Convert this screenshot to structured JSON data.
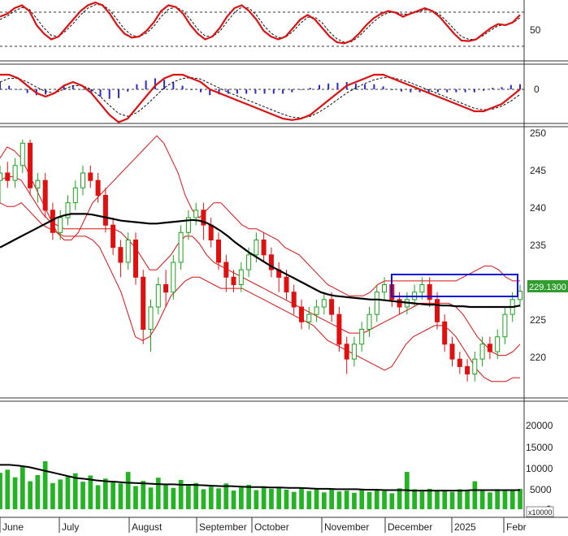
{
  "chart_data": {
    "type": "candlestick",
    "x_tick_labels": [
      "June",
      "July",
      "August",
      "September",
      "October",
      "November",
      "December",
      "2025",
      "Febr"
    ],
    "price_panel": {
      "ylim": [
        215,
        251
      ],
      "y_ticks": [
        220,
        225,
        230,
        235,
        240,
        245,
        250
      ],
      "last_price_label": "229.1300",
      "bollinger_upper": [
        247,
        248.5,
        248,
        247,
        245,
        243,
        241,
        239,
        237,
        236,
        236,
        237,
        239,
        241,
        242,
        243,
        244,
        245,
        246,
        247,
        248,
        249,
        250,
        249,
        247,
        245,
        242,
        240,
        239,
        240,
        241,
        241,
        240,
        239,
        238,
        237.5,
        237.5,
        237,
        236.5,
        236,
        235,
        234.5,
        234,
        233,
        232,
        231,
        230,
        229.5,
        229,
        228.5,
        228.5,
        228.5,
        229,
        230,
        230.5,
        230.5,
        230.5,
        230.5,
        230.5,
        230.5,
        230.5,
        230.5,
        230.5,
        230.5,
        230.5,
        231,
        231.5,
        232,
        232.5,
        232.5,
        232,
        231,
        230.5,
        230.5
      ],
      "bollinger_mid": [
        244,
        244.5,
        244.5,
        244,
        242.5,
        241,
        239.5,
        238.5,
        238,
        237.5,
        237.5,
        237.5,
        237.5,
        237.5,
        237.5,
        237.5,
        237.5,
        237,
        236,
        235,
        233.5,
        232,
        232,
        233,
        234,
        235.5,
        236.5,
        236.5,
        235.5,
        234,
        233,
        232.5,
        232,
        231.5,
        231,
        230.5,
        230,
        229.5,
        229,
        228.5,
        228,
        227.5,
        227,
        226.5,
        226,
        225.5,
        225,
        224.5,
        224,
        223.5,
        223.5,
        223.5,
        224,
        224.5,
        225,
        225.5,
        226,
        226.5,
        227,
        227.5,
        227.5,
        227.5,
        227.5,
        227.5,
        227,
        226,
        224.5,
        223,
        222,
        221,
        220.5,
        220.5,
        221,
        222
      ],
      "bollinger_lower": [
        241,
        240.5,
        240.5,
        241,
        240,
        239,
        238,
        237.5,
        237,
        236.5,
        236.5,
        236.5,
        236.5,
        236,
        235,
        233,
        231,
        229,
        226,
        223,
        222.5,
        223,
        224.5,
        226.5,
        228.5,
        229.5,
        230.5,
        231,
        231,
        230.5,
        230,
        229.5,
        229.5,
        229.5,
        229.5,
        229,
        228.5,
        228,
        227.5,
        227,
        226.5,
        226,
        225.5,
        225,
        224.5,
        223.5,
        222.5,
        222,
        221.5,
        221,
        220.5,
        220,
        219.5,
        219,
        218.5,
        219,
        220.5,
        222,
        223,
        223.5,
        224,
        224.5,
        224.5,
        224,
        223,
        221.5,
        220,
        218.5,
        217.5,
        217,
        217,
        217,
        217.5,
        217.5
      ],
      "ma_long": [
        235,
        235.5,
        236,
        236.5,
        237,
        237.5,
        238,
        238.5,
        239,
        239.3,
        239.5,
        239.5,
        239.5,
        239.4,
        239.2,
        239,
        238.8,
        238.6,
        238.5,
        238.4,
        238.3,
        238.2,
        238.2,
        238.3,
        238.4,
        238.5,
        238.6,
        238.7,
        238.6,
        238.3,
        237.8,
        237.2,
        236.5,
        235.7,
        235,
        234.3,
        233.7,
        233.1,
        232.5,
        232,
        231.5,
        231,
        230.5,
        230,
        229.5,
        229,
        228.7,
        228.5,
        228.4,
        228.3,
        228.2,
        228.1,
        228,
        228,
        227.9,
        227.8,
        227.7,
        227.6,
        227.5,
        227.4,
        227.3,
        227.3,
        227.2,
        227.2,
        227.1,
        227.1,
        227,
        227,
        227,
        227,
        227,
        227,
        227,
        227.2
      ],
      "candles": [
        [
          244,
          245,
          241,
          246
        ],
        [
          245,
          244,
          243,
          246.5
        ],
        [
          244,
          246,
          243,
          247
        ],
        [
          246,
          249,
          245,
          249.5
        ],
        [
          249,
          243,
          242,
          249.5
        ],
        [
          243,
          244,
          241,
          245
        ],
        [
          244,
          240,
          239,
          245
        ],
        [
          240,
          237,
          236,
          241
        ],
        [
          237,
          239,
          236,
          240
        ],
        [
          239,
          241,
          238,
          242
        ],
        [
          241,
          243,
          240,
          244
        ],
        [
          243,
          245,
          242,
          246
        ],
        [
          245,
          244,
          243,
          246
        ],
        [
          244,
          242,
          241,
          245
        ],
        [
          242,
          238,
          237,
          243
        ],
        [
          238,
          235,
          234,
          239
        ],
        [
          235,
          233,
          231,
          236
        ],
        [
          233,
          236,
          232,
          237
        ],
        [
          236,
          231,
          230,
          237
        ],
        [
          231,
          224,
          222,
          232
        ],
        [
          224,
          227,
          221,
          228
        ],
        [
          227,
          230,
          226,
          231
        ],
        [
          230,
          229,
          227,
          232
        ],
        [
          229,
          233,
          228,
          234
        ],
        [
          233,
          237,
          232,
          238
        ],
        [
          237,
          239,
          236,
          240
        ],
        [
          239,
          240,
          238,
          241
        ],
        [
          240,
          238,
          236,
          241
        ],
        [
          238,
          236,
          235,
          239
        ],
        [
          236,
          233,
          232,
          237
        ],
        [
          233,
          231,
          229,
          234
        ],
        [
          231,
          230,
          229,
          232
        ],
        [
          230,
          232,
          229,
          233
        ],
        [
          232,
          234,
          231,
          235
        ],
        [
          234,
          236,
          233,
          237
        ],
        [
          236,
          234,
          233,
          237
        ],
        [
          234,
          232,
          231,
          235
        ],
        [
          232,
          231,
          229,
          233
        ],
        [
          231,
          229,
          228,
          232
        ],
        [
          229,
          227,
          226,
          230
        ],
        [
          227,
          225,
          224,
          228
        ],
        [
          225,
          226,
          224,
          227
        ],
        [
          226,
          227,
          225,
          228
        ],
        [
          227,
          228,
          226,
          229
        ],
        [
          228,
          226,
          225,
          229
        ],
        [
          226,
          222,
          221,
          227
        ],
        [
          222,
          220,
          218,
          223
        ],
        [
          220,
          222,
          219,
          223
        ],
        [
          222,
          224,
          221,
          225
        ],
        [
          224,
          226,
          223,
          227
        ],
        [
          226,
          229,
          225,
          230
        ],
        [
          229,
          230,
          228,
          231
        ],
        [
          230,
          228,
          227,
          231
        ],
        [
          228,
          227,
          226,
          229
        ],
        [
          227,
          228,
          226,
          229
        ],
        [
          228,
          229,
          227,
          230
        ],
        [
          229,
          230,
          228,
          231
        ],
        [
          230,
          228,
          227,
          231
        ],
        [
          228,
          225,
          224,
          229
        ],
        [
          225,
          222,
          221,
          226
        ],
        [
          222,
          220,
          219,
          223
        ],
        [
          220,
          219,
          218,
          221
        ],
        [
          219,
          218,
          217,
          220
        ],
        [
          218,
          220,
          217,
          221
        ],
        [
          220,
          222,
          219,
          223
        ],
        [
          222,
          221,
          220,
          223
        ],
        [
          221,
          223,
          220,
          224
        ],
        [
          223,
          226,
          222,
          227
        ],
        [
          226,
          228,
          225,
          229
        ],
        [
          228,
          229.13,
          227,
          230
        ]
      ]
    },
    "stochastic_panel": {
      "y_ticks": [
        50
      ],
      "k_line": [
        75,
        80,
        90,
        95,
        85,
        60,
        45,
        35,
        40,
        55,
        70,
        85,
        95,
        100,
        95,
        80,
        60,
        45,
        38,
        40,
        50,
        65,
        85,
        95,
        92,
        80,
        60,
        45,
        35,
        40,
        55,
        75,
        90,
        95,
        85,
        70,
        50,
        40,
        35,
        40,
        55,
        70,
        78,
        70,
        55,
        40,
        30,
        28,
        33,
        45,
        60,
        72,
        80,
        85,
        82,
        75,
        80,
        85,
        90,
        85,
        75,
        60,
        45,
        33,
        32,
        35,
        45,
        55,
        62,
        60,
        65,
        78
      ],
      "d_line": [
        70,
        76,
        85,
        91,
        88,
        72,
        55,
        42,
        40,
        50,
        63,
        78,
        90,
        96,
        96,
        86,
        70,
        53,
        42,
        40,
        46,
        58,
        75,
        88,
        92,
        85,
        70,
        53,
        41,
        40,
        49,
        66,
        82,
        92,
        90,
        78,
        60,
        46,
        38,
        39,
        49,
        63,
        74,
        74,
        64,
        48,
        36,
        30,
        31,
        40,
        53,
        66,
        76,
        82,
        83,
        79,
        80,
        83,
        87,
        86,
        79,
        67,
        53,
        40,
        35,
        35,
        42,
        51,
        59,
        61,
        64,
        73
      ]
    },
    "macd_panel": {
      "y_ticks": [
        0
      ],
      "macd_line": [
        2,
        2,
        1.5,
        0.5,
        -0.5,
        -1,
        -0.5,
        0.5,
        1,
        0.5,
        -0.5,
        -2,
        -3.5,
        -4.5,
        -4,
        -2.5,
        -1,
        0.5,
        1.5,
        2,
        2,
        1.5,
        1,
        0,
        -0.5,
        -1,
        -1.5,
        -2,
        -2.5,
        -3,
        -3.5,
        -4,
        -4.2,
        -4,
        -3.5,
        -2.5,
        -1.5,
        -0.5,
        0.5,
        1,
        1.5,
        2,
        2,
        1.5,
        1,
        0.5,
        0,
        -0.5,
        -1,
        -1.5,
        -2,
        -2.5,
        -3,
        -3,
        -2.5,
        -2,
        -1,
        0
      ],
      "signal_line": [
        1,
        1.5,
        1.5,
        1,
        0.3,
        -0.3,
        -0.5,
        0,
        0.5,
        0.5,
        0,
        -1,
        -2.2,
        -3.3,
        -3.7,
        -3.2,
        -2.2,
        -1,
        0.2,
        1,
        1.5,
        1.6,
        1.4,
        0.8,
        0.2,
        -0.4,
        -0.9,
        -1.4,
        -1.9,
        -2.4,
        -2.9,
        -3.4,
        -3.8,
        -3.9,
        -3.7,
        -3.1,
        -2.3,
        -1.4,
        -0.5,
        0.2,
        0.8,
        1.3,
        1.6,
        1.6,
        1.3,
        0.9,
        0.4,
        -0.1,
        -0.6,
        -1.1,
        -1.6,
        -2.1,
        -2.6,
        -2.8,
        -2.7,
        -2.3,
        -1.6,
        -0.7
      ],
      "histogram": [
        1,
        0.5,
        0,
        -0.5,
        -0.8,
        -0.7,
        0,
        0.5,
        0.5,
        0,
        -0.5,
        -1,
        -1.3,
        -1.2,
        -0.3,
        0.7,
        1.2,
        1.5,
        1.3,
        1,
        0.5,
        -0.1,
        -0.4,
        -0.8,
        -0.7,
        -0.6,
        -0.6,
        -0.6,
        -0.6,
        -0.6,
        -0.6,
        -0.6,
        -0.4,
        -0.1,
        0.2,
        0.6,
        0.8,
        0.9,
        1,
        0.8,
        0.7,
        0.7,
        0.4,
        -0.1,
        -0.3,
        -0.4,
        -0.4,
        -0.4,
        -0.4,
        -0.4,
        -0.4,
        -0.4,
        -0.4,
        -0.2,
        0.2,
        0.3,
        0.6,
        0.7
      ]
    },
    "volume_panel": {
      "unit_label": "x10000",
      "y_ticks": [
        0,
        5000,
        10000,
        15000,
        20000
      ],
      "ylim": [
        0,
        24000
      ],
      "avg_line": [
        10000,
        10000,
        9800,
        9500,
        9000,
        8500,
        8000,
        7500,
        7000,
        6800,
        6500,
        6300,
        6200,
        6000,
        5900,
        5800,
        5700,
        5600,
        5600,
        5500,
        5500,
        5400,
        5300,
        5200,
        5200,
        5100,
        5000,
        5000,
        4900,
        4900,
        4800,
        4800,
        4700,
        4600,
        4600,
        4500,
        4500,
        4500,
        4400,
        4400,
        4300,
        4300,
        4300,
        4200,
        4200,
        4200,
        4200,
        4200,
        4200,
        4300,
        4300,
        4300,
        4300,
        4300,
        4300
      ],
      "bars": [
        8200,
        8900,
        7200,
        9800,
        6300,
        7700,
        10800,
        5900,
        6700,
        7300,
        8100,
        6200,
        7600,
        5400,
        6900,
        6100,
        5800,
        8400,
        5200,
        6400,
        4900,
        7100,
        5600,
        4800,
        6600,
        5300,
        5900,
        4500,
        5100,
        4700,
        5800,
        4200,
        4900,
        5500,
        4300,
        5200,
        4600,
        5000,
        4400,
        3900,
        4800,
        4100,
        4500,
        3800,
        4600,
        4000,
        4200,
        3700,
        4400,
        3900,
        4300,
        4100,
        3600,
        4700,
        8400,
        4500,
        4000,
        4600,
        4200,
        4400,
        3900,
        4500,
        4100,
        6300,
        4300,
        3800,
        4500,
        4100,
        4400,
        4600
      ]
    }
  }
}
